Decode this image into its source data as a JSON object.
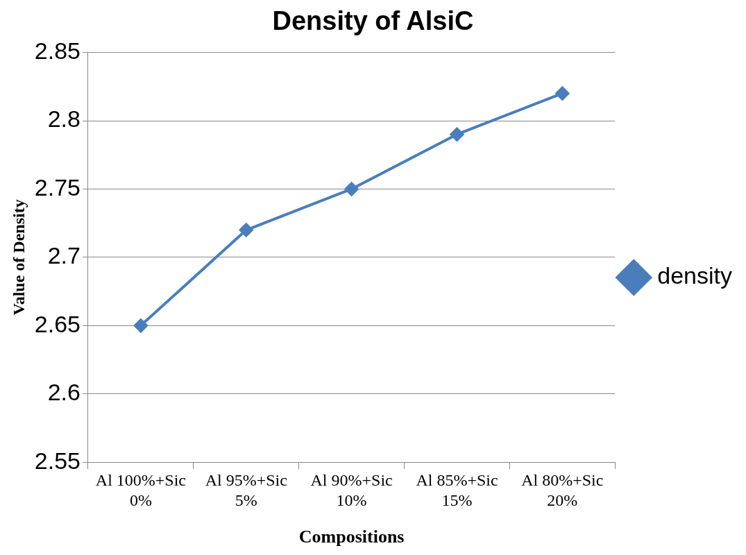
{
  "chart_data": {
    "type": "line",
    "title": "Density of AlsiC",
    "xlabel": "Compositions",
    "ylabel": "Value of Density",
    "categories": [
      "Al 100%+Sic 0%",
      "Al 95%+Sic 5%",
      "Al 90%+Sic 10%",
      "Al 85%+Sic 15%",
      "Al 80%+Sic 20%"
    ],
    "series": [
      {
        "name": "density",
        "color": "#4a7ebb",
        "values": [
          2.65,
          2.72,
          2.75,
          2.79,
          2.82
        ]
      }
    ],
    "ylim": [
      2.55,
      2.85
    ],
    "yticks": [
      2.55,
      2.6,
      2.65,
      2.7,
      2.75,
      2.8,
      2.85
    ],
    "grid": "y",
    "legend": "right",
    "marker": "diamond",
    "line_style": "solid"
  }
}
